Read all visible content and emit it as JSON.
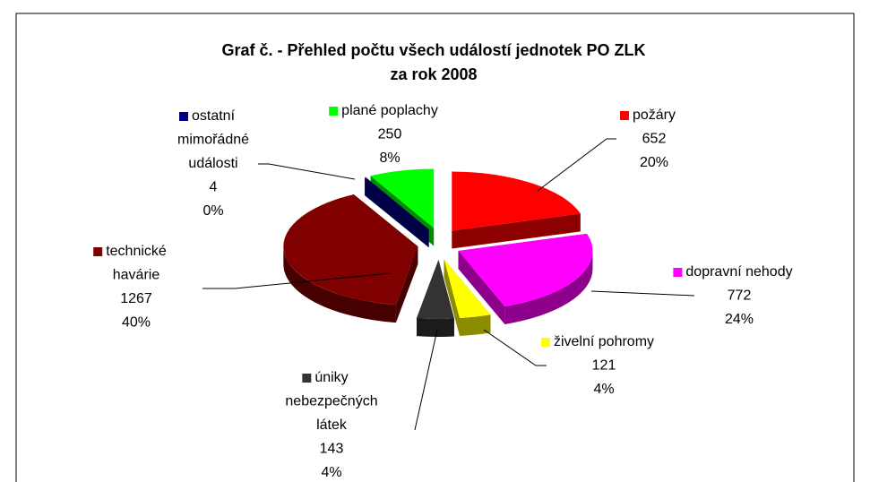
{
  "chart_data": {
    "type": "pie3d",
    "title": "Graf č. - Přehled počtu všech událostí jednotek PO ZLK",
    "subtitle": "za rok 2008",
    "categories": [
      "požáry",
      "dopravní nehody",
      "živelní pohromy",
      "úniky nebezpečných látek",
      "technické havárie",
      "ostatní mimořádné události",
      "plané poplachy"
    ],
    "values": [
      652,
      772,
      121,
      143,
      1267,
      4,
      250
    ],
    "percent_labels": [
      "20%",
      "24%",
      "4%",
      "4%",
      "40%",
      "0%",
      "8%"
    ],
    "colors": [
      "#ff0000",
      "#ff00ff",
      "#ffff00",
      "#333333",
      "#800000",
      "#000080",
      "#00ff00"
    ]
  }
}
